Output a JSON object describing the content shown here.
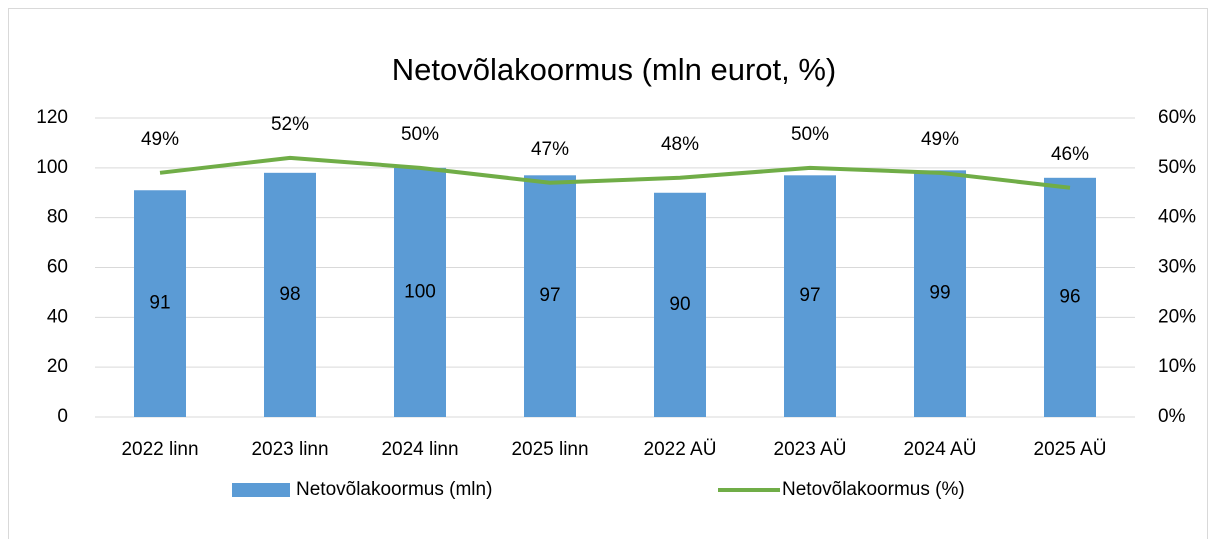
{
  "chart_data": {
    "type": "bar",
    "title": "Netovõlakoormus (mln eurot, %)",
    "categories": [
      "2022 linn",
      "2023 linn",
      "2024 linn",
      "2025 linn",
      "2022 AÜ",
      "2023 AÜ",
      "2024 AÜ",
      "2025 AÜ"
    ],
    "series": [
      {
        "name": "Netovõlakoormus (mln)",
        "type": "bar",
        "color": "#5b9bd5",
        "values": [
          91,
          98,
          100,
          97,
          90,
          97,
          99,
          96
        ]
      },
      {
        "name": "Netovõlakoormus (%)",
        "type": "line",
        "color": "#70ad47",
        "axis": "y2",
        "values": [
          49,
          52,
          50,
          47,
          48,
          50,
          49,
          46
        ],
        "value_labels": [
          "49%",
          "52%",
          "50%",
          "47%",
          "48%",
          "50%",
          "49%",
          "46%"
        ]
      }
    ],
    "ylim": [
      0,
      120
    ],
    "yticks": [
      0,
      20,
      40,
      60,
      80,
      100,
      120
    ],
    "y2lim": [
      0,
      60
    ],
    "y2ticks": [
      {
        "value": 0,
        "label": "0%"
      },
      {
        "value": 10,
        "label": "10%"
      },
      {
        "value": 20,
        "label": "20%"
      },
      {
        "value": 30,
        "label": "30%"
      },
      {
        "value": 40,
        "label": "40%"
      },
      {
        "value": 50,
        "label": "50%"
      },
      {
        "value": 60,
        "label": "60%"
      }
    ],
    "grid": true,
    "legend": "bottom"
  }
}
